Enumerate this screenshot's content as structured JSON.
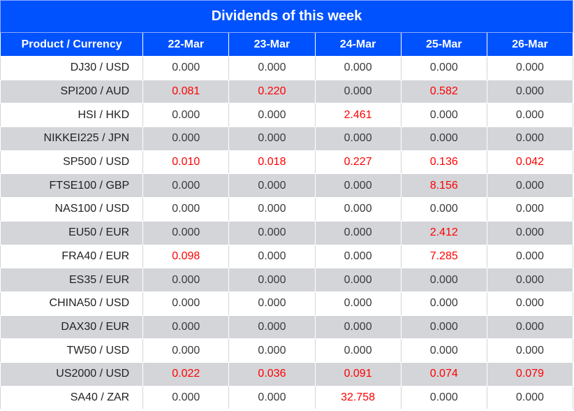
{
  "title": "Dividends of this week",
  "columns": [
    "Product / Currency",
    "22-Mar",
    "23-Mar",
    "24-Mar",
    "25-Mar",
    "26-Mar"
  ],
  "colors": {
    "header_bg": "#0052ff",
    "highlight": "#ff0000",
    "stripe": "#d3d5d9"
  },
  "rows": [
    {
      "product": "DJ30 / USD",
      "values": [
        "0.000",
        "0.000",
        "0.000",
        "0.000",
        "0.000"
      ]
    },
    {
      "product": "SPI200 / AUD",
      "values": [
        "0.081",
        "0.220",
        "0.000",
        "0.582",
        "0.000"
      ]
    },
    {
      "product": "HSI / HKD",
      "values": [
        "0.000",
        "0.000",
        "2.461",
        "0.000",
        "0.000"
      ]
    },
    {
      "product": "NIKKEI225 / JPN",
      "values": [
        "0.000",
        "0.000",
        "0.000",
        "0.000",
        "0.000"
      ]
    },
    {
      "product": "SP500 / USD",
      "values": [
        "0.010",
        "0.018",
        "0.227",
        "0.136",
        "0.042"
      ]
    },
    {
      "product": "FTSE100 / GBP",
      "values": [
        "0.000",
        "0.000",
        "0.000",
        "8.156",
        "0.000"
      ]
    },
    {
      "product": "NAS100 / USD",
      "values": [
        "0.000",
        "0.000",
        "0.000",
        "0.000",
        "0.000"
      ]
    },
    {
      "product": "EU50 / EUR",
      "values": [
        "0.000",
        "0.000",
        "0.000",
        "2.412",
        "0.000"
      ]
    },
    {
      "product": "FRA40 / EUR",
      "values": [
        "0.098",
        "0.000",
        "0.000",
        "7.285",
        "0.000"
      ]
    },
    {
      "product": "ES35 / EUR",
      "values": [
        "0.000",
        "0.000",
        "0.000",
        "0.000",
        "0.000"
      ]
    },
    {
      "product": "CHINA50 / USD",
      "values": [
        "0.000",
        "0.000",
        "0.000",
        "0.000",
        "0.000"
      ]
    },
    {
      "product": "DAX30 / EUR",
      "values": [
        "0.000",
        "0.000",
        "0.000",
        "0.000",
        "0.000"
      ]
    },
    {
      "product": "TW50 / USD",
      "values": [
        "0.000",
        "0.000",
        "0.000",
        "0.000",
        "0.000"
      ]
    },
    {
      "product": "US2000 / USD",
      "values": [
        "0.022",
        "0.036",
        "0.091",
        "0.074",
        "0.079"
      ]
    },
    {
      "product": "SA40 / ZAR",
      "values": [
        "0.000",
        "0.000",
        "32.758",
        "0.000",
        "0.000"
      ]
    }
  ]
}
